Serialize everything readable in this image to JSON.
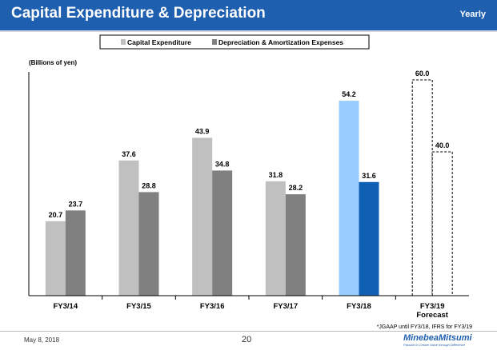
{
  "header": {
    "title": "Capital Expenditure & Depreciation",
    "period": "Yearly"
  },
  "footer": {
    "date": "May 8, 2018",
    "page": "20",
    "brand": "MinebeaMitsumi",
    "tagline": "Passion to Create Value through Difference"
  },
  "colors": {
    "header_bg": "#1f5fb0",
    "capex": "#c0c0c0",
    "depreciation": "#808080",
    "capex_fy18": "#99ccff",
    "depreciation_fy18": "#0f5fb4"
  },
  "chart_data": {
    "type": "bar",
    "title": "Capital Expenditure & Depreciation",
    "ylabel": "(Billions of yen)",
    "xlabel": "",
    "ylim": [
      0,
      65
    ],
    "grid": false,
    "legend_position": "top-center",
    "categories": [
      "FY3/14",
      "FY3/15",
      "FY3/16",
      "FY3/17",
      "FY3/18",
      "FY3/19"
    ],
    "category_sublabels": [
      "",
      "",
      "",
      "",
      "",
      "Forecast"
    ],
    "series": [
      {
        "name": "Capital Expenditure",
        "values": [
          20.7,
          37.6,
          43.9,
          31.8,
          54.2,
          60.0
        ],
        "labels": [
          "20.7",
          "37.6",
          "43.9",
          "31.8",
          "54.2",
          "60.0"
        ]
      },
      {
        "name": "Depreciation & Amortization Expenses",
        "values": [
          23.7,
          28.8,
          34.8,
          28.2,
          31.6,
          40.0
        ],
        "labels": [
          "23.7",
          "28.8",
          "34.8",
          "28.2",
          "31.6",
          "40.0"
        ]
      }
    ],
    "forecast_category": "FY3/19",
    "annotations": [
      "*JGAAP until FY3/18, IFRS for FY3/19"
    ]
  }
}
